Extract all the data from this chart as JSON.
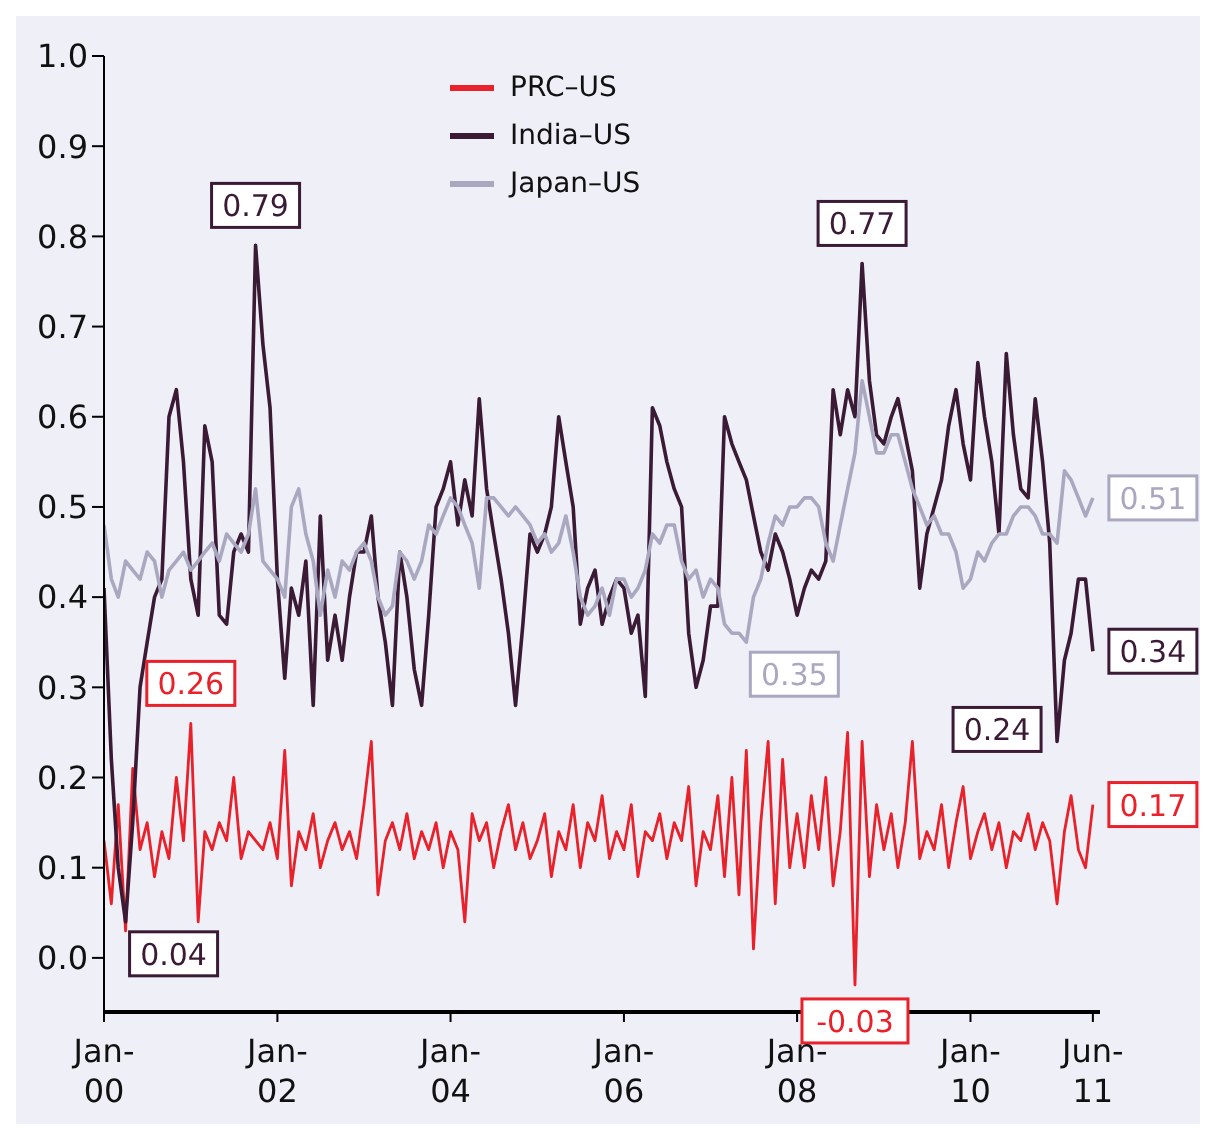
{
  "chart_data": {
    "type": "line",
    "x": [
      "2000-01",
      "2000-02",
      "2000-03",
      "2000-04",
      "2000-05",
      "2000-06",
      "2000-07",
      "2000-08",
      "2000-09",
      "2000-10",
      "2000-11",
      "2000-12",
      "2001-01",
      "2001-02",
      "2001-03",
      "2001-04",
      "2001-05",
      "2001-06",
      "2001-07",
      "2001-08",
      "2001-09",
      "2001-10",
      "2001-11",
      "2001-12",
      "2002-01",
      "2002-02",
      "2002-03",
      "2002-04",
      "2002-05",
      "2002-06",
      "2002-07",
      "2002-08",
      "2002-09",
      "2002-10",
      "2002-11",
      "2002-12",
      "2003-01",
      "2003-02",
      "2003-03",
      "2003-04",
      "2003-05",
      "2003-06",
      "2003-07",
      "2003-08",
      "2003-09",
      "2003-10",
      "2003-11",
      "2003-12",
      "2004-01",
      "2004-02",
      "2004-03",
      "2004-04",
      "2004-05",
      "2004-06",
      "2004-07",
      "2004-08",
      "2004-09",
      "2004-10",
      "2004-11",
      "2004-12",
      "2005-01",
      "2005-02",
      "2005-03",
      "2005-04",
      "2005-05",
      "2005-06",
      "2005-07",
      "2005-08",
      "2005-09",
      "2005-10",
      "2005-11",
      "2005-12",
      "2006-01",
      "2006-02",
      "2006-03",
      "2006-04",
      "2006-05",
      "2006-06",
      "2006-07",
      "2006-08",
      "2006-09",
      "2006-10",
      "2006-11",
      "2006-12",
      "2007-01",
      "2007-02",
      "2007-03",
      "2007-04",
      "2007-05",
      "2007-06",
      "2007-07",
      "2007-08",
      "2007-09",
      "2007-10",
      "2007-11",
      "2007-12",
      "2008-01",
      "2008-02",
      "2008-03",
      "2008-04",
      "2008-05",
      "2008-06",
      "2008-07",
      "2008-08",
      "2008-09",
      "2008-10",
      "2008-11",
      "2008-12",
      "2009-01",
      "2009-02",
      "2009-03",
      "2009-04",
      "2009-05",
      "2009-06",
      "2009-07",
      "2009-08",
      "2009-09",
      "2009-10",
      "2009-11",
      "2009-12",
      "2010-01",
      "2010-02",
      "2010-03",
      "2010-04",
      "2010-05",
      "2010-06",
      "2010-07",
      "2010-08",
      "2010-09",
      "2010-10",
      "2010-11",
      "2010-12",
      "2011-01",
      "2011-02",
      "2011-03",
      "2011-04",
      "2011-05",
      "2011-06"
    ],
    "series": [
      {
        "name": "PRC–US",
        "color": "#e8212a",
        "values": [
          0.13,
          0.06,
          0.17,
          0.03,
          0.21,
          0.12,
          0.15,
          0.09,
          0.14,
          0.11,
          0.2,
          0.13,
          0.26,
          0.04,
          0.14,
          0.12,
          0.15,
          0.13,
          0.2,
          0.11,
          0.14,
          0.13,
          0.12,
          0.15,
          0.11,
          0.23,
          0.08,
          0.14,
          0.12,
          0.16,
          0.1,
          0.13,
          0.15,
          0.12,
          0.14,
          0.11,
          0.17,
          0.24,
          0.07,
          0.13,
          0.15,
          0.12,
          0.16,
          0.11,
          0.14,
          0.12,
          0.15,
          0.1,
          0.14,
          0.12,
          0.04,
          0.16,
          0.13,
          0.15,
          0.1,
          0.14,
          0.17,
          0.12,
          0.15,
          0.11,
          0.13,
          0.16,
          0.09,
          0.14,
          0.12,
          0.17,
          0.1,
          0.15,
          0.13,
          0.18,
          0.11,
          0.14,
          0.12,
          0.17,
          0.09,
          0.14,
          0.13,
          0.16,
          0.11,
          0.15,
          0.13,
          0.19,
          0.08,
          0.14,
          0.12,
          0.18,
          0.09,
          0.2,
          0.07,
          0.23,
          0.01,
          0.15,
          0.24,
          0.06,
          0.22,
          0.1,
          0.16,
          0.1,
          0.18,
          0.12,
          0.2,
          0.08,
          0.14,
          0.25,
          -0.03,
          0.24,
          0.09,
          0.17,
          0.12,
          0.16,
          0.1,
          0.15,
          0.24,
          0.11,
          0.14,
          0.12,
          0.17,
          0.1,
          0.15,
          0.19,
          0.11,
          0.14,
          0.16,
          0.12,
          0.15,
          0.1,
          0.14,
          0.13,
          0.16,
          0.12,
          0.15,
          0.13,
          0.06,
          0.14,
          0.18,
          0.12,
          0.1,
          0.17
        ]
      },
      {
        "name": "India–US",
        "color": "#3a1a35",
        "values": [
          0.41,
          0.22,
          0.1,
          0.04,
          0.15,
          0.3,
          0.35,
          0.4,
          0.42,
          0.6,
          0.63,
          0.55,
          0.42,
          0.38,
          0.59,
          0.55,
          0.38,
          0.37,
          0.45,
          0.47,
          0.45,
          0.79,
          0.68,
          0.61,
          0.42,
          0.31,
          0.41,
          0.38,
          0.44,
          0.28,
          0.49,
          0.33,
          0.38,
          0.33,
          0.4,
          0.45,
          0.45,
          0.49,
          0.4,
          0.35,
          0.28,
          0.45,
          0.4,
          0.32,
          0.28,
          0.38,
          0.5,
          0.52,
          0.55,
          0.48,
          0.53,
          0.49,
          0.62,
          0.52,
          0.47,
          0.42,
          0.36,
          0.28,
          0.37,
          0.47,
          0.45,
          0.47,
          0.5,
          0.6,
          0.55,
          0.5,
          0.37,
          0.41,
          0.43,
          0.37,
          0.4,
          0.42,
          0.41,
          0.36,
          0.38,
          0.29,
          0.61,
          0.59,
          0.55,
          0.52,
          0.5,
          0.36,
          0.3,
          0.33,
          0.39,
          0.39,
          0.6,
          0.57,
          0.55,
          0.53,
          0.49,
          0.45,
          0.43,
          0.47,
          0.45,
          0.42,
          0.38,
          0.41,
          0.43,
          0.42,
          0.44,
          0.63,
          0.58,
          0.63,
          0.6,
          0.77,
          0.64,
          0.58,
          0.57,
          0.6,
          0.62,
          0.58,
          0.54,
          0.41,
          0.47,
          0.5,
          0.53,
          0.59,
          0.63,
          0.57,
          0.53,
          0.66,
          0.6,
          0.55,
          0.47,
          0.67,
          0.58,
          0.52,
          0.51,
          0.62,
          0.55,
          0.46,
          0.24,
          0.33,
          0.36,
          0.42,
          0.42,
          0.34
        ]
      },
      {
        "name": "Japan–US",
        "color": "#a9a8c0",
        "values": [
          0.48,
          0.42,
          0.4,
          0.44,
          0.43,
          0.42,
          0.45,
          0.44,
          0.4,
          0.43,
          0.44,
          0.45,
          0.43,
          0.44,
          0.45,
          0.46,
          0.44,
          0.47,
          0.46,
          0.45,
          0.47,
          0.52,
          0.44,
          0.43,
          0.42,
          0.4,
          0.5,
          0.52,
          0.47,
          0.44,
          0.38,
          0.43,
          0.4,
          0.44,
          0.43,
          0.45,
          0.46,
          0.44,
          0.4,
          0.38,
          0.39,
          0.45,
          0.44,
          0.42,
          0.44,
          0.48,
          0.47,
          0.49,
          0.51,
          0.5,
          0.48,
          0.46,
          0.41,
          0.51,
          0.51,
          0.5,
          0.49,
          0.5,
          0.49,
          0.48,
          0.46,
          0.47,
          0.45,
          0.46,
          0.49,
          0.45,
          0.4,
          0.38,
          0.39,
          0.41,
          0.38,
          0.42,
          0.42,
          0.4,
          0.41,
          0.43,
          0.47,
          0.46,
          0.48,
          0.48,
          0.44,
          0.42,
          0.43,
          0.4,
          0.42,
          0.41,
          0.37,
          0.36,
          0.36,
          0.35,
          0.4,
          0.42,
          0.46,
          0.49,
          0.48,
          0.5,
          0.5,
          0.51,
          0.51,
          0.5,
          0.46,
          0.44,
          0.48,
          0.52,
          0.56,
          0.64,
          0.6,
          0.56,
          0.56,
          0.58,
          0.58,
          0.55,
          0.52,
          0.5,
          0.48,
          0.49,
          0.47,
          0.47,
          0.45,
          0.41,
          0.42,
          0.45,
          0.44,
          0.46,
          0.47,
          0.47,
          0.49,
          0.5,
          0.5,
          0.49,
          0.47,
          0.47,
          0.46,
          0.54,
          0.53,
          0.51,
          0.49,
          0.51
        ]
      }
    ],
    "annotations": [
      {
        "text": "0.04",
        "x": "2000-04",
        "y": 0.04
      },
      {
        "text": "0.79",
        "x": "2001-10",
        "y": 0.79
      },
      {
        "text": "0.26",
        "x": "2001-01",
        "y": 0.26
      },
      {
        "text": "0.77",
        "x": "2008-10",
        "y": 0.77
      },
      {
        "text": "0.35",
        "x": "2007-06",
        "y": 0.35
      },
      {
        "text": "-0.03",
        "x": "2008-09",
        "y": -0.03
      },
      {
        "text": "0.24",
        "x": "2011-01",
        "y": 0.24
      },
      {
        "text": "0.34",
        "x": "2011-06",
        "y": 0.34
      },
      {
        "text": "0.51",
        "x": "2011-06",
        "y": 0.51
      },
      {
        "text": "0.17",
        "x": "2011-06",
        "y": 0.17
      }
    ],
    "xlim": [
      "2000-01",
      "2011-07"
    ],
    "xticks": [
      {
        "value": "2000-01",
        "label": "Jan-00"
      },
      {
        "value": "2002-01",
        "label": "Jan-02"
      },
      {
        "value": "2004-01",
        "label": "Jan-04"
      },
      {
        "value": "2006-01",
        "label": "Jan-06"
      },
      {
        "value": "2008-01",
        "label": "Jan-08"
      },
      {
        "value": "2010-01",
        "label": "Jan-10"
      },
      {
        "value": "2011-06",
        "label": "Jun-11"
      }
    ],
    "ylim": [
      -0.06,
      1.0
    ],
    "yticks": [
      {
        "value": 0,
        "label": "0.0"
      },
      {
        "value": 0.1,
        "label": "0.1"
      },
      {
        "value": 0.2,
        "label": "0.2"
      },
      {
        "value": 0.3,
        "label": "0.3"
      },
      {
        "value": 0.4,
        "label": "0.4"
      },
      {
        "value": 0.5,
        "label": "0.5"
      },
      {
        "value": 0.6,
        "label": "0.6"
      },
      {
        "value": 0.7,
        "label": "0.7"
      },
      {
        "value": 0.8,
        "label": "0.8"
      },
      {
        "value": 0.9,
        "label": "0.9"
      },
      {
        "value": 1.0,
        "label": "1.0"
      }
    ],
    "grid": false,
    "legend": "top",
    "line_style": "solid",
    "marker": "none"
  }
}
